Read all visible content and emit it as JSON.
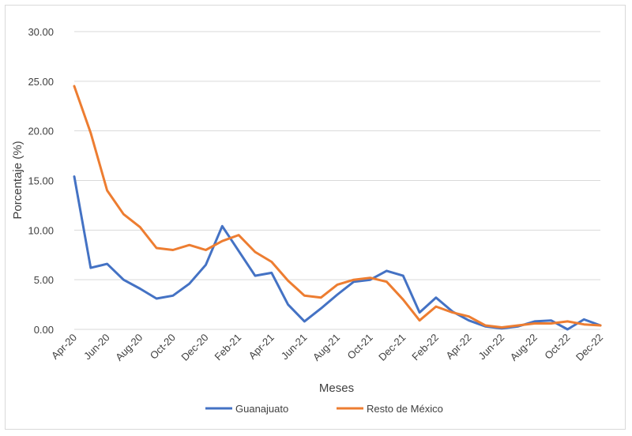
{
  "chart_data": {
    "type": "line",
    "xlabel": "Meses",
    "ylabel": "Porcentaje (%)",
    "ylim": [
      0,
      30
    ],
    "yticks": [
      "0.00",
      "5.00",
      "10.00",
      "15.00",
      "20.00",
      "25.00",
      "30.00"
    ],
    "grid": true,
    "legend_position": "bottom",
    "categories": [
      "Apr-20",
      "May-20",
      "Jun-20",
      "Jul-20",
      "Aug-20",
      "Sep-20",
      "Oct-20",
      "Nov-20",
      "Dec-20",
      "Jan-21",
      "Feb-21",
      "Mar-21",
      "Apr-21",
      "May-21",
      "Jun-21",
      "Jul-21",
      "Aug-21",
      "Sep-21",
      "Oct-21",
      "Nov-21",
      "Dec-21",
      "Jan-22",
      "Feb-22",
      "Mar-22",
      "Apr-22",
      "May-22",
      "Jun-22",
      "Jul-22",
      "Aug-22",
      "Sep-22",
      "Oct-22",
      "Nov-22",
      "Dec-22"
    ],
    "xtick_labels": [
      "Apr-20",
      "Jun-20",
      "Aug-20",
      "Oct-20",
      "Dec-20",
      "Feb-21",
      "Apr-21",
      "Jun-21",
      "Aug-21",
      "Oct-21",
      "Dec-21",
      "Feb-22",
      "Apr-22",
      "Jun-22",
      "Aug-22",
      "Oct-22",
      "Dec-22"
    ],
    "series": [
      {
        "name": "Guanajuato",
        "color": "#4472c4",
        "values": [
          15.4,
          6.2,
          6.6,
          5.0,
          4.1,
          3.1,
          3.4,
          4.6,
          6.5,
          10.4,
          7.9,
          5.4,
          5.7,
          2.5,
          0.8,
          2.1,
          3.5,
          4.8,
          5.0,
          5.9,
          5.4,
          1.7,
          3.2,
          1.8,
          0.9,
          0.3,
          0.1,
          0.3,
          0.8,
          0.9,
          0.0,
          1.0,
          0.4
        ]
      },
      {
        "name": "Resto de México",
        "color": "#ed7d31",
        "values": [
          24.5,
          19.8,
          14.0,
          11.6,
          10.3,
          8.2,
          8.0,
          8.5,
          8.0,
          8.9,
          9.5,
          7.8,
          6.8,
          4.9,
          3.4,
          3.2,
          4.5,
          5.0,
          5.2,
          4.8,
          3.0,
          0.9,
          2.3,
          1.7,
          1.3,
          0.4,
          0.2,
          0.4,
          0.6,
          0.6,
          0.8,
          0.5,
          0.4
        ]
      }
    ]
  }
}
